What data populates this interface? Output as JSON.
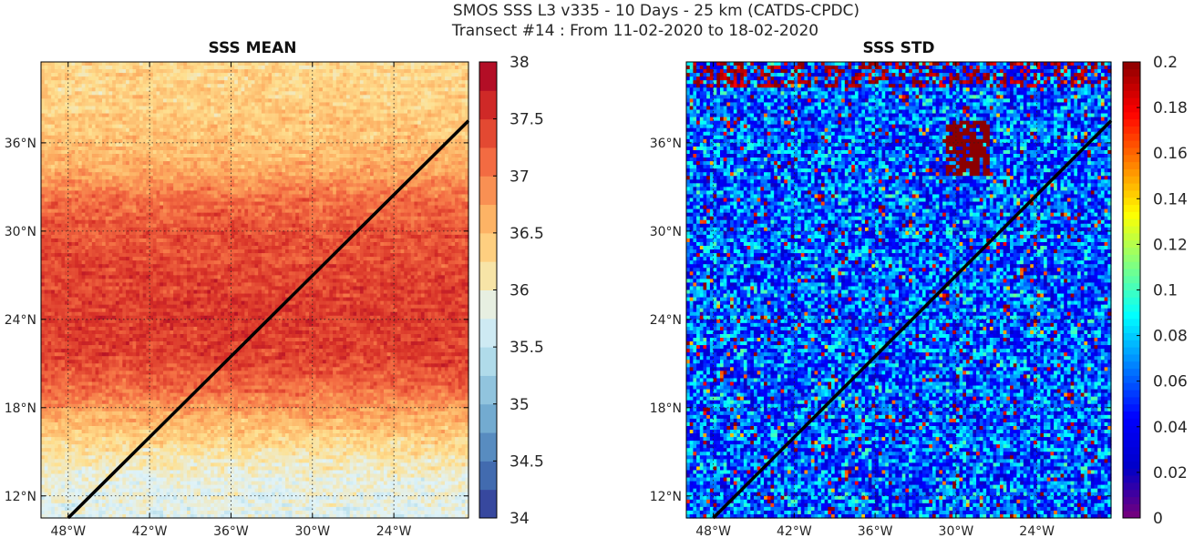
{
  "figure": {
    "title_line1": "SMOS SSS L3 v335 - 10 Days - 25 km (CATDS-CPDC)",
    "title_line2": "Transect #14 : From 11-02-2020 to 18-02-2020"
  },
  "chart_data": [
    {
      "type": "heatmap",
      "title": "SSS MEAN",
      "xlabel": "",
      "ylabel": "",
      "xlim": [
        -50,
        -18.5
      ],
      "ylim": [
        10.5,
        41.5
      ],
      "x_ticks": [
        -48,
        -42,
        -36,
        -30,
        -24
      ],
      "x_tick_labels": [
        "48°W",
        "42°W",
        "36°W",
        "30°W",
        "24°W"
      ],
      "y_ticks": [
        12,
        18,
        24,
        30,
        36
      ],
      "y_tick_labels": [
        "12°N",
        "18°N",
        "24°N",
        "30°N",
        "36°N"
      ],
      "grid": true,
      "colormap": "RdYlBu_r",
      "colorbar": {
        "min": 34,
        "max": 38,
        "ticks": [
          34,
          34.5,
          35,
          35.5,
          36,
          36.5,
          37,
          37.5,
          38
        ],
        "tick_labels": [
          "34",
          "34.5",
          "35",
          "35.5",
          "36",
          "36.5",
          "37",
          "37.5",
          "38"
        ],
        "colors": [
          "#313695",
          "#4575b4",
          "#74add1",
          "#abd9e9",
          "#e0f3f8",
          "#fee090",
          "#fdae61",
          "#f46d43",
          "#d73027",
          "#a50026"
        ]
      },
      "transect": {
        "from": [
          -48,
          10.5
        ],
        "to": [
          -18.5,
          37.5
        ],
        "color": "#000000"
      },
      "salinity_profile_by_latitude": [
        {
          "lat": 11,
          "value": 35.8
        },
        {
          "lat": 13,
          "value": 35.9
        },
        {
          "lat": 15,
          "value": 36.2
        },
        {
          "lat": 17,
          "value": 36.6
        },
        {
          "lat": 19,
          "value": 37.1
        },
        {
          "lat": 21,
          "value": 37.4
        },
        {
          "lat": 24,
          "value": 37.5
        },
        {
          "lat": 27,
          "value": 37.4
        },
        {
          "lat": 30,
          "value": 37.3
        },
        {
          "lat": 32,
          "value": 37.1
        },
        {
          "lat": 34,
          "value": 36.7
        },
        {
          "lat": 36,
          "value": 36.5
        },
        {
          "lat": 38,
          "value": 36.4
        },
        {
          "lat": 41,
          "value": 36.3
        }
      ]
    },
    {
      "type": "heatmap",
      "title": "SSS STD",
      "xlabel": "",
      "ylabel": "",
      "xlim": [
        -50,
        -18.5
      ],
      "ylim": [
        10.5,
        41.5
      ],
      "x_ticks": [
        -48,
        -42,
        -36,
        -30,
        -24
      ],
      "x_tick_labels": [
        "48°W",
        "42°W",
        "36°W",
        "30°W",
        "24°W"
      ],
      "y_ticks": [
        12,
        18,
        24,
        30,
        36
      ],
      "y_tick_labels": [
        "12°N",
        "18°N",
        "24°N",
        "30°N",
        "36°N"
      ],
      "grid": true,
      "colormap": "jet",
      "colorbar": {
        "min": 0,
        "max": 0.2,
        "ticks": [
          0,
          0.02,
          0.04,
          0.06,
          0.08,
          0.1,
          0.12,
          0.14,
          0.16,
          0.18,
          0.2
        ],
        "tick_labels": [
          "0",
          "0.02",
          "0.04",
          "0.06",
          "0.08",
          "0.1",
          "0.12",
          "0.14",
          "0.16",
          "0.18",
          "0.2"
        ],
        "colors": [
          "#7a007a",
          "#0000c8",
          "#0000ff",
          "#0080ff",
          "#00ffff",
          "#80ff80",
          "#ffff00",
          "#ff8000",
          "#ff0000",
          "#8b0000"
        ]
      },
      "transect": {
        "from": [
          -48,
          10.5
        ],
        "to": [
          -18.5,
          37.5
        ],
        "color": "#000000"
      },
      "typical_std": 0.06
    }
  ]
}
